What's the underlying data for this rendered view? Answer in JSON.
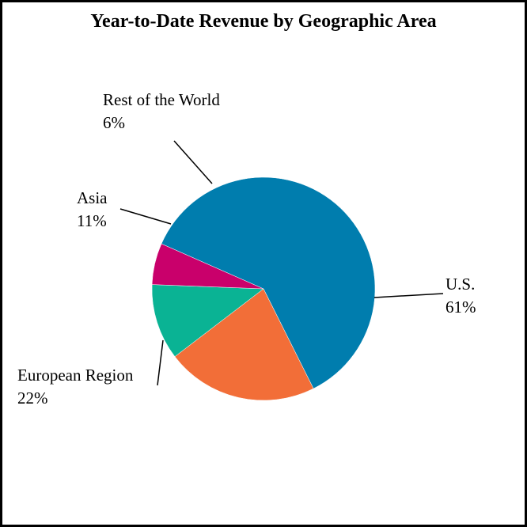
{
  "chart_data": {
    "type": "pie",
    "title": "Year-to-Date Revenue by Geographic Area",
    "slices": [
      {
        "name": "U.S.",
        "value": 61,
        "value_label": "61%",
        "color": "#007DAE"
      },
      {
        "name": "European Region",
        "value": 22,
        "value_label": "22%",
        "color": "#F26E38"
      },
      {
        "name": "Asia",
        "value": 11,
        "value_label": "11%",
        "color": "#0AB394"
      },
      {
        "name": "Rest of the World",
        "value": 6,
        "value_label": "6%",
        "color": "#C9006B"
      }
    ],
    "legend": "none"
  }
}
